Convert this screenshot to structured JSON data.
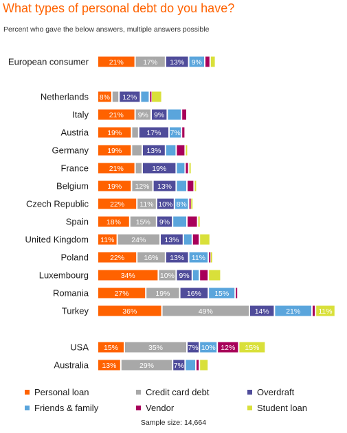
{
  "title": "What types of personal debt do you have?",
  "subtitle": "Percent who gave the below answers, multiple answers possible",
  "footnote": "Sample size: 14,664",
  "colors": {
    "Personal loan": "#ff6200",
    "Credit card debt": "#a8a8a8",
    "Overdraft": "#4f4c9a",
    "Friends & family": "#5aa5dc",
    "Vendor": "#a8005a",
    "Student loan": "#d9e03a"
  },
  "chart_data": {
    "type": "bar",
    "orientation": "horizontal",
    "stacked": true,
    "value_unit": "%",
    "categories": [
      "European consumer",
      "Netherlands",
      "Italy",
      "Austria",
      "Germany",
      "France",
      "Belgium",
      "Czech Republic",
      "Spain",
      "United Kingdom",
      "Poland",
      "Luxembourg",
      "Romania",
      "Turkey",
      "USA",
      "Australia"
    ],
    "series": [
      {
        "name": "Personal loan",
        "values": [
          21,
          8,
          21,
          19,
          19,
          21,
          19,
          22,
          18,
          11,
          22,
          34,
          27,
          36,
          15,
          13
        ]
      },
      {
        "name": "Credit card debt",
        "values": [
          17,
          4,
          9,
          4,
          6,
          4,
          12,
          11,
          15,
          24,
          16,
          10,
          19,
          49,
          35,
          29
        ]
      },
      {
        "name": "Overdraft",
        "values": [
          13,
          12,
          9,
          17,
          13,
          19,
          13,
          10,
          9,
          13,
          13,
          9,
          16,
          14,
          7,
          7
        ]
      },
      {
        "name": "Friends & family",
        "values": [
          9,
          5,
          8,
          7,
          6,
          5,
          6,
          8,
          8,
          5,
          11,
          4,
          15,
          21,
          10,
          6
        ]
      },
      {
        "name": "Vendor",
        "values": [
          3,
          1,
          3,
          2,
          5,
          2,
          4,
          1,
          6,
          4,
          1,
          5,
          1,
          2,
          12,
          2
        ]
      },
      {
        "name": "Student loan",
        "values": [
          3,
          6,
          0,
          0,
          1,
          1,
          1,
          1,
          1,
          6,
          1,
          7,
          0,
          11,
          15,
          5
        ]
      }
    ],
    "data_labels": [
      [
        "21%",
        "8%",
        "21%",
        "19%",
        "19%",
        "21%",
        "19%",
        "22%",
        "18%",
        "11%",
        "22%",
        "34%",
        "27%",
        "36%",
        "15%",
        "13%"
      ],
      [
        "17%",
        "",
        "9%",
        "",
        "",
        "",
        "12%",
        "11%",
        "15%",
        "24%",
        "16%",
        "10%",
        "19%",
        "49%",
        "35%",
        "29%"
      ],
      [
        "13%",
        "12%",
        "9%",
        "17%",
        "13%",
        "19%",
        "13%",
        "10%",
        "9%",
        "13%",
        "13%",
        "9%",
        "16%",
        "14%",
        "7%",
        "7%"
      ],
      [
        "9%",
        "",
        "",
        "7%",
        "",
        "",
        "",
        "8%",
        "",
        "",
        "11%",
        "",
        "15%",
        "21%",
        "10%",
        ""
      ],
      [
        "",
        "",
        "",
        "",
        "",
        "",
        "",
        "",
        "",
        "",
        "",
        "",
        "",
        "",
        "12%",
        ""
      ],
      [
        "",
        "",
        "",
        "",
        "",
        "",
        "",
        "",
        "",
        "",
        "",
        "",
        "",
        "11%",
        "15%",
        ""
      ]
    ],
    "legend_position": "bottom",
    "grid": false
  }
}
